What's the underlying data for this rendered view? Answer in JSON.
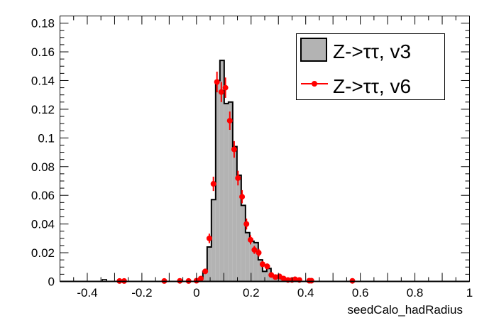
{
  "chart_data": {
    "type": "histogram",
    "title": "",
    "xlabel": "seedCalo_hadRadius",
    "ylabel": "",
    "xlim": [
      -0.5,
      1.0
    ],
    "ylim": [
      0,
      0.185
    ],
    "x_ticks": [
      -0.4,
      -0.2,
      0,
      0.2,
      0.4,
      0.6,
      0.8,
      1
    ],
    "x_tick_labels": [
      "-0.4",
      "-0.2",
      "0",
      "0.2",
      "0.4",
      "0.6",
      "0.8",
      "1"
    ],
    "y_ticks": [
      0,
      0.02,
      0.04,
      0.06,
      0.08,
      0.1,
      0.12,
      0.14,
      0.16,
      0.18
    ],
    "y_tick_labels": [
      "0",
      "0.02",
      "0.04",
      "0.06",
      "0.08",
      "0.1",
      "0.12",
      "0.14",
      "0.16",
      "0.18"
    ],
    "grid": false,
    "legend_position": "top-right",
    "series": [
      {
        "name": "Z->ττ, v3",
        "style": "filled-histogram",
        "color": "#b3b3b3",
        "line_color": "#000000",
        "first_edge": 0.0078,
        "bin_width": 0.0156,
        "values": [
          0.002,
          0.007,
          0.024,
          0.057,
          0.14,
          0.154,
          0.124,
          0.125,
          0.094,
          0.074,
          0.053,
          0.034,
          0.028,
          0.027,
          0.015,
          0.007,
          0.009,
          0.004,
          0.003,
          0.002,
          0.001,
          0.001,
          0.0005
        ],
        "extra_bins": [
          {
            "x": -0.345,
            "width": 0.0156,
            "value": 0.0008
          }
        ]
      },
      {
        "name": "Z->ττ, v6",
        "style": "markers-errors",
        "color": "#ff0000",
        "points": [
          {
            "x": -0.282,
            "y": 0.0003,
            "err": 0.0003
          },
          {
            "x": -0.265,
            "y": 0.0003,
            "err": 0.0003
          },
          {
            "x": -0.118,
            "y": 0.0003,
            "err": 0.0003
          },
          {
            "x": -0.061,
            "y": 0.0004,
            "err": 0.0004
          },
          {
            "x": -0.029,
            "y": 0.0003,
            "err": 0.0003
          },
          {
            "x": 0.0,
            "y": 0.0005,
            "err": 0.0005
          },
          {
            "x": 0.016,
            "y": 0.002,
            "err": 0.001
          },
          {
            "x": 0.032,
            "y": 0.007,
            "err": 0.0016
          },
          {
            "x": 0.047,
            "y": 0.03,
            "err": 0.0033
          },
          {
            "x": 0.062,
            "y": 0.068,
            "err": 0.005
          },
          {
            "x": 0.075,
            "y": 0.139,
            "err": 0.0072
          },
          {
            "x": 0.091,
            "y": 0.132,
            "err": 0.007
          },
          {
            "x": 0.106,
            "y": 0.135,
            "err": 0.0071
          },
          {
            "x": 0.122,
            "y": 0.112,
            "err": 0.0064
          },
          {
            "x": 0.138,
            "y": 0.092,
            "err": 0.0058
          },
          {
            "x": 0.152,
            "y": 0.072,
            "err": 0.0051
          },
          {
            "x": 0.167,
            "y": 0.059,
            "err": 0.0046
          },
          {
            "x": 0.183,
            "y": 0.04,
            "err": 0.0038
          },
          {
            "x": 0.198,
            "y": 0.029,
            "err": 0.0032
          },
          {
            "x": 0.212,
            "y": 0.022,
            "err": 0.0028
          },
          {
            "x": 0.228,
            "y": 0.02,
            "err": 0.0027
          },
          {
            "x": 0.242,
            "y": 0.012,
            "err": 0.0021
          },
          {
            "x": 0.259,
            "y": 0.0105,
            "err": 0.002
          },
          {
            "x": 0.274,
            "y": 0.0045,
            "err": 0.0013
          },
          {
            "x": 0.289,
            "y": 0.003,
            "err": 0.001
          },
          {
            "x": 0.304,
            "y": 0.0035,
            "err": 0.0011
          },
          {
            "x": 0.319,
            "y": 0.002,
            "err": 0.0009
          },
          {
            "x": 0.335,
            "y": 0.001,
            "err": 0.0006
          },
          {
            "x": 0.35,
            "y": 0.001,
            "err": 0.0006
          },
          {
            "x": 0.361,
            "y": 0.0015,
            "err": 0.0007
          },
          {
            "x": 0.377,
            "y": 0.001,
            "err": 0.0006
          },
          {
            "x": 0.413,
            "y": 0.0005,
            "err": 0.0005
          },
          {
            "x": 0.421,
            "y": 0.0005,
            "err": 0.0005
          },
          {
            "x": 0.571,
            "y": 0.0004,
            "err": 0.0004
          }
        ]
      }
    ]
  }
}
